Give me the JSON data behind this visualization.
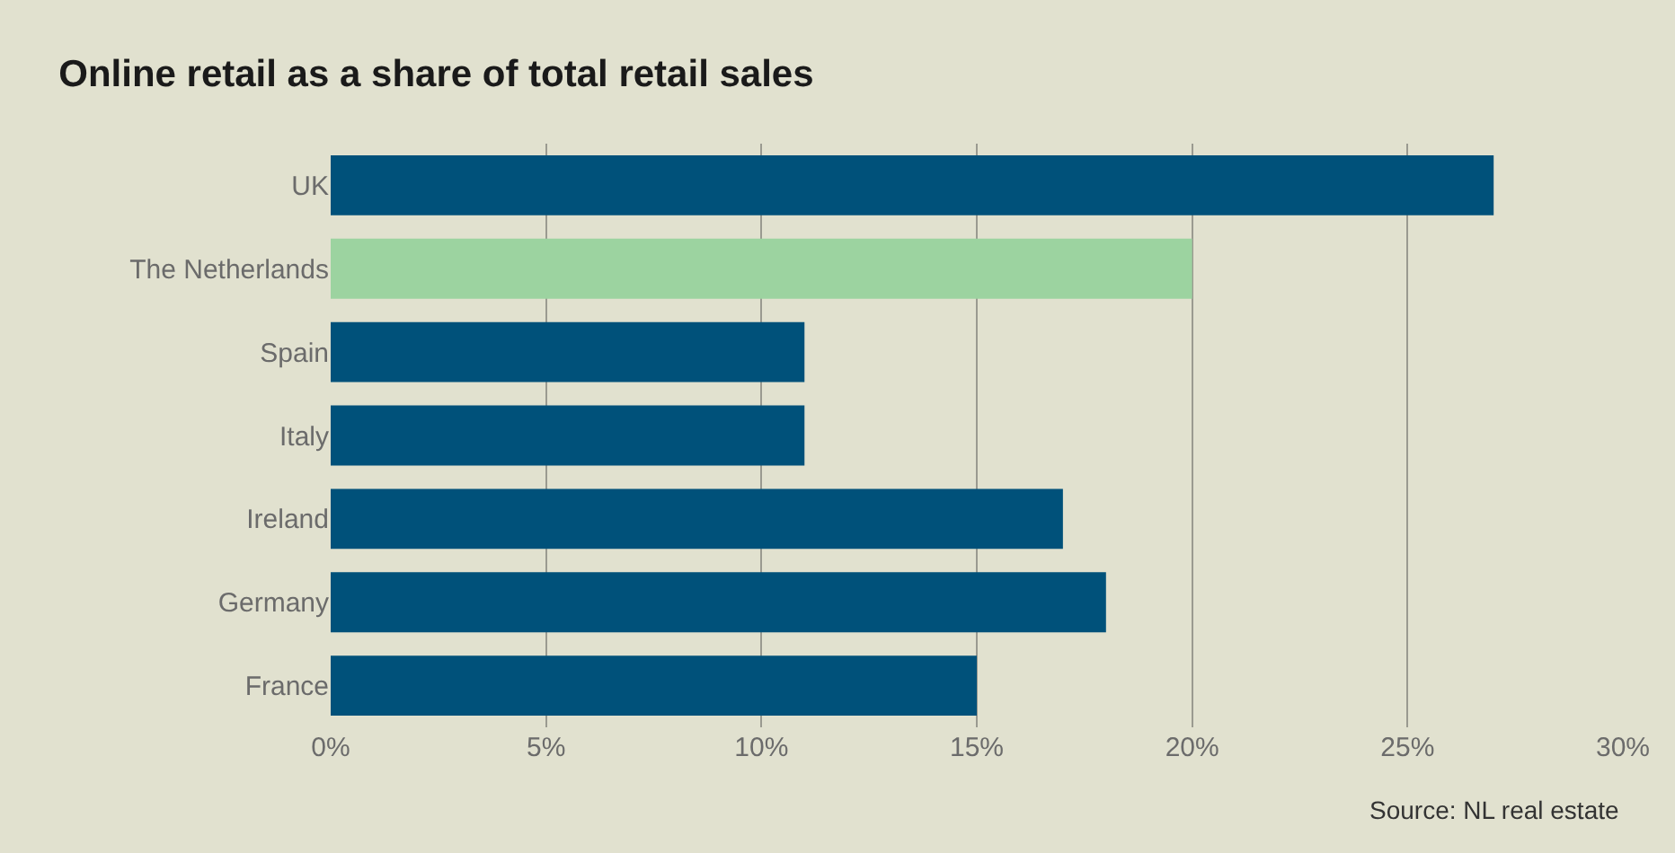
{
  "chart_data": {
    "type": "bar",
    "orientation": "horizontal",
    "title": "Online retail as a share of total retail sales",
    "categories": [
      "UK",
      "The Netherlands",
      "Spain",
      "Italy",
      "Ireland",
      "Germany",
      "France"
    ],
    "values": [
      27,
      20,
      11,
      11,
      17,
      18,
      15
    ],
    "colors": [
      "#00517a",
      "#9cd3a0",
      "#00517a",
      "#00517a",
      "#00517a",
      "#00517a",
      "#00517a"
    ],
    "xlim": [
      0,
      30
    ],
    "xticks": [
      {
        "value": 0,
        "label": "0%"
      },
      {
        "value": 5,
        "label": "5%"
      },
      {
        "value": 10,
        "label": "10%"
      },
      {
        "value": 15,
        "label": "15%"
      },
      {
        "value": 20,
        "label": "20%"
      },
      {
        "value": 25,
        "label": "25%"
      },
      {
        "value": 30,
        "label": "30%"
      }
    ],
    "grid": "x",
    "annotations": [
      "Source: NL real estate"
    ]
  }
}
